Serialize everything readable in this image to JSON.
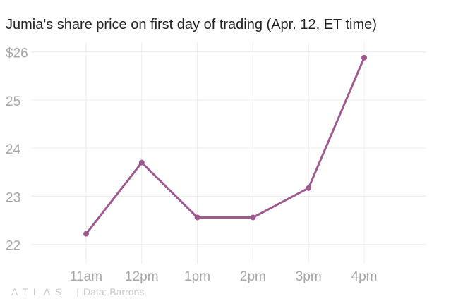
{
  "chart_data": {
    "type": "line",
    "title": "Jumia's share price on first day of trading (Apr. 12, ET time)",
    "xlabel": "",
    "ylabel": "",
    "categories": [
      "11am",
      "12pm",
      "1pm",
      "2pm",
      "3pm",
      "4pm"
    ],
    "y_tick_labels": [
      "$26",
      "25",
      "24",
      "23",
      "22"
    ],
    "y_ticks": [
      26,
      25,
      24,
      23,
      22
    ],
    "ylim": [
      21.6,
      26.2
    ],
    "series": [
      {
        "x": [
          11.0,
          12.0,
          13.0,
          14.0,
          15.0,
          16.0
        ],
        "values": [
          22.22,
          23.7,
          22.56,
          22.56,
          23.17,
          25.88
        ],
        "color": "#9c5a8e"
      }
    ],
    "grid": true,
    "legend": "none"
  },
  "footer": {
    "logo": "ATLAS",
    "separator": "|",
    "source": "Data: Barrons"
  },
  "colors": {
    "line": "#9c5a8e",
    "grid": "#ececec",
    "tick_text": "#a6a6a6",
    "title_text": "#222222"
  }
}
